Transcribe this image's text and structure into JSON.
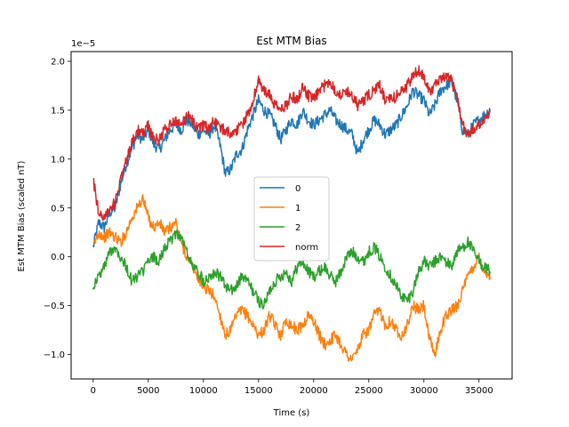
{
  "chart_data": {
    "type": "line",
    "title": "Est MTM Bias",
    "xlabel": "Time (s)",
    "ylabel": "Est MTM Bias (scaled nT)",
    "offset_text": "1e−5",
    "xlim": [
      -2000,
      38000
    ],
    "ylim": [
      -1.25,
      2.1
    ],
    "xticks": [
      0,
      5000,
      10000,
      15000,
      20000,
      25000,
      30000,
      35000
    ],
    "xtick_labels": [
      "0",
      "5000",
      "10000",
      "15000",
      "20000",
      "25000",
      "30000",
      "35000"
    ],
    "yticks": [
      -1.0,
      -0.5,
      0.0,
      0.5,
      1.0,
      1.5,
      2.0
    ],
    "ytick_labels": [
      "−1.0",
      "−0.5",
      "0.0",
      "0.5",
      "1.0",
      "1.5",
      "2.0"
    ],
    "grid": false,
    "legend_position": "center",
    "series": [
      {
        "name": "0",
        "color": "#1f77b4",
        "x": [
          0,
          500,
          1000,
          1500,
          2000,
          2500,
          3000,
          3500,
          4000,
          4500,
          5000,
          5500,
          6000,
          6500,
          7000,
          7500,
          8000,
          8500,
          9000,
          9500,
          10000,
          10500,
          11000,
          11500,
          12000,
          12500,
          13000,
          13500,
          14000,
          14500,
          15000,
          15500,
          16000,
          16500,
          17000,
          17500,
          18000,
          18500,
          19000,
          19500,
          20000,
          20500,
          21000,
          21500,
          22000,
          22500,
          23000,
          23500,
          24000,
          24500,
          25000,
          25500,
          26000,
          26500,
          27000,
          27500,
          28000,
          28500,
          29000,
          29500,
          30000,
          30500,
          31000,
          31500,
          32000,
          32500,
          33000,
          33500,
          34000,
          34500,
          35000,
          35500,
          36000
        ],
        "y": [
          0.1,
          0.35,
          0.3,
          0.45,
          0.5,
          0.75,
          0.95,
          1.1,
          1.25,
          1.2,
          1.3,
          1.15,
          1.1,
          1.2,
          1.3,
          1.35,
          1.3,
          1.4,
          1.35,
          1.25,
          1.3,
          1.25,
          1.35,
          1.15,
          0.85,
          0.9,
          1.05,
          1.1,
          1.3,
          1.45,
          1.6,
          1.5,
          1.45,
          1.35,
          1.2,
          1.3,
          1.4,
          1.35,
          1.5,
          1.4,
          1.35,
          1.4,
          1.45,
          1.5,
          1.4,
          1.35,
          1.3,
          1.25,
          1.05,
          1.2,
          1.3,
          1.4,
          1.35,
          1.25,
          1.3,
          1.35,
          1.45,
          1.55,
          1.7,
          1.65,
          1.6,
          1.45,
          1.55,
          1.7,
          1.75,
          1.8,
          1.6,
          1.3,
          1.25,
          1.35,
          1.4,
          1.45,
          1.5
        ]
      },
      {
        "name": "1",
        "color": "#ff7f0e",
        "x": [
          0,
          500,
          1000,
          1500,
          2000,
          2500,
          3000,
          3500,
          4000,
          4500,
          5000,
          5500,
          6000,
          6500,
          7000,
          7500,
          8000,
          8500,
          9000,
          9500,
          10000,
          10500,
          11000,
          11500,
          12000,
          12500,
          13000,
          13500,
          14000,
          14500,
          15000,
          15500,
          16000,
          16500,
          17000,
          17500,
          18000,
          18500,
          19000,
          19500,
          20000,
          20500,
          21000,
          21500,
          22000,
          22500,
          23000,
          23500,
          24000,
          24500,
          25000,
          25500,
          26000,
          26500,
          27000,
          27500,
          28000,
          28500,
          29000,
          29500,
          30000,
          30500,
          31000,
          31500,
          32000,
          32500,
          33000,
          33500,
          34000,
          34500,
          35000,
          35500,
          36000
        ],
        "y": [
          0.1,
          0.25,
          0.2,
          0.25,
          0.2,
          0.15,
          0.25,
          0.4,
          0.5,
          0.6,
          0.4,
          0.3,
          0.35,
          0.25,
          0.3,
          0.35,
          0.15,
          0.0,
          -0.1,
          -0.2,
          -0.3,
          -0.35,
          -0.4,
          -0.6,
          -0.8,
          -0.75,
          -0.6,
          -0.55,
          -0.6,
          -0.7,
          -0.8,
          -0.75,
          -0.6,
          -0.7,
          -0.8,
          -0.65,
          -0.7,
          -0.75,
          -0.7,
          -0.6,
          -0.65,
          -0.8,
          -0.9,
          -0.85,
          -0.8,
          -0.9,
          -1.0,
          -1.05,
          -0.95,
          -0.8,
          -0.75,
          -0.6,
          -0.55,
          -0.7,
          -0.65,
          -0.75,
          -0.8,
          -0.7,
          -0.5,
          -0.55,
          -0.5,
          -0.85,
          -1.0,
          -0.75,
          -0.6,
          -0.55,
          -0.5,
          -0.35,
          -0.2,
          -0.1,
          0.0,
          -0.15,
          -0.2
        ]
      },
      {
        "name": "2",
        "color": "#2ca02c",
        "x": [
          0,
          500,
          1000,
          1500,
          2000,
          2500,
          3000,
          3500,
          4000,
          4500,
          5000,
          5500,
          6000,
          6500,
          7000,
          7500,
          8000,
          8500,
          9000,
          9500,
          10000,
          10500,
          11000,
          11500,
          12000,
          12500,
          13000,
          13500,
          14000,
          14500,
          15000,
          15500,
          16000,
          16500,
          17000,
          17500,
          18000,
          18500,
          19000,
          19500,
          20000,
          20500,
          21000,
          21500,
          22000,
          22500,
          23000,
          23500,
          24000,
          24500,
          25000,
          25500,
          26000,
          26500,
          27000,
          27500,
          28000,
          28500,
          29000,
          29500,
          30000,
          30500,
          31000,
          31500,
          32000,
          32500,
          33000,
          33500,
          34000,
          34500,
          35000,
          35500,
          36000
        ],
        "y": [
          -0.3,
          -0.2,
          -0.1,
          0.05,
          0.1,
          0.0,
          -0.1,
          -0.25,
          -0.2,
          -0.15,
          -0.05,
          0.0,
          -0.05,
          0.1,
          0.15,
          0.25,
          0.2,
          0.05,
          -0.1,
          -0.15,
          -0.25,
          -0.2,
          -0.15,
          -0.2,
          -0.3,
          -0.35,
          -0.3,
          -0.2,
          -0.25,
          -0.35,
          -0.45,
          -0.5,
          -0.35,
          -0.25,
          -0.2,
          -0.15,
          -0.25,
          -0.1,
          -0.05,
          -0.15,
          -0.2,
          -0.15,
          -0.1,
          -0.2,
          -0.25,
          -0.15,
          0.0,
          0.05,
          0.0,
          -0.05,
          0.05,
          0.1,
          0.0,
          -0.1,
          -0.2,
          -0.3,
          -0.4,
          -0.45,
          -0.35,
          -0.15,
          -0.05,
          -0.1,
          -0.05,
          0.0,
          -0.05,
          -0.1,
          0.05,
          0.1,
          0.15,
          0.05,
          -0.05,
          -0.1,
          -0.15
        ]
      },
      {
        "name": "norm",
        "color": "#d62728",
        "x": [
          0,
          500,
          1000,
          1500,
          2000,
          2500,
          3000,
          3500,
          4000,
          4500,
          5000,
          5500,
          6000,
          6500,
          7000,
          7500,
          8000,
          8500,
          9000,
          9500,
          10000,
          10500,
          11000,
          11500,
          12000,
          12500,
          13000,
          13500,
          14000,
          14500,
          15000,
          15500,
          16000,
          16500,
          17000,
          17500,
          18000,
          18500,
          19000,
          19500,
          20000,
          20500,
          21000,
          21500,
          22000,
          22500,
          23000,
          23500,
          24000,
          24500,
          25000,
          25500,
          26000,
          26500,
          27000,
          27500,
          28000,
          28500,
          29000,
          29500,
          30000,
          30500,
          31000,
          31500,
          32000,
          32500,
          33000,
          33500,
          34000,
          34500,
          35000,
          35500,
          36000
        ],
        "y": [
          0.8,
          0.45,
          0.4,
          0.5,
          0.55,
          0.8,
          1.0,
          1.15,
          1.3,
          1.25,
          1.35,
          1.2,
          1.2,
          1.3,
          1.35,
          1.4,
          1.35,
          1.45,
          1.4,
          1.3,
          1.35,
          1.3,
          1.4,
          1.3,
          1.3,
          1.25,
          1.3,
          1.35,
          1.45,
          1.6,
          1.8,
          1.7,
          1.65,
          1.55,
          1.5,
          1.55,
          1.65,
          1.6,
          1.75,
          1.65,
          1.6,
          1.7,
          1.75,
          1.8,
          1.7,
          1.65,
          1.7,
          1.65,
          1.55,
          1.6,
          1.65,
          1.7,
          1.75,
          1.6,
          1.6,
          1.65,
          1.7,
          1.75,
          1.85,
          1.9,
          1.85,
          1.7,
          1.75,
          1.8,
          1.85,
          1.8,
          1.65,
          1.35,
          1.25,
          1.3,
          1.35,
          1.4,
          1.5
        ]
      }
    ]
  }
}
